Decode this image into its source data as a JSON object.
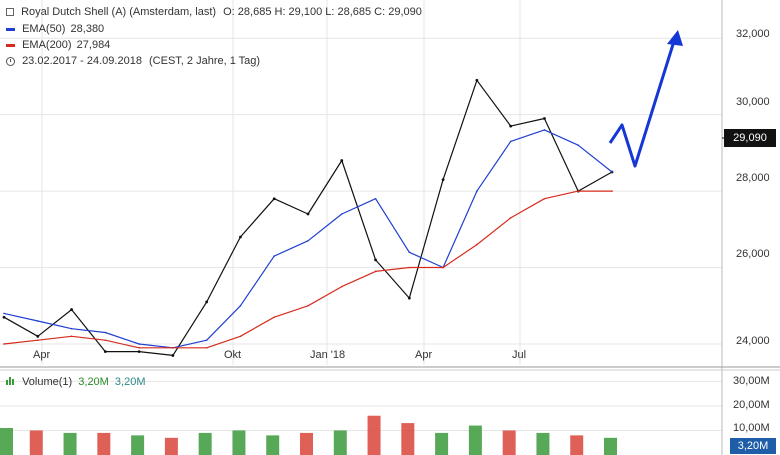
{
  "header": {
    "instrument": "Royal Dutch Shell (A) (Amsterdam, last)",
    "ohlc": "O: 28,685  H: 29,100  L: 28,685  C: 29,090",
    "ema50_label": "EMA(50)",
    "ema50_value": "28,380",
    "ema200_label": "EMA(200)",
    "ema200_value": "27,984",
    "range": "23.02.2017 - 24.09.2018",
    "range_note": "(CEST, 2 Jahre, 1 Tag)"
  },
  "volume_legend": {
    "label": "Volume(1)",
    "value1": "3,20M",
    "value2": "3,20M"
  },
  "badges": {
    "last_price": "29,090",
    "last_volume": "3,20M"
  },
  "colors": {
    "price": "#111111",
    "ema50": "#1f3fd0",
    "ema200": "#d62b1e",
    "forecast_arrow": "#1437d6",
    "volume_up": "#3a9a3a",
    "volume_down": "#d9443a",
    "grid": "#e6e6e6"
  },
  "chart_data": [
    {
      "type": "line",
      "x_ticks": [
        "Apr",
        "Okt",
        "Jan '18",
        "Apr",
        "Jul"
      ],
      "y_ticks": [
        "24,000",
        "26,000",
        "28,000",
        "30,000",
        "32,000"
      ],
      "ylim": [
        23.45,
        33.0
      ],
      "series": [
        {
          "name": "Royal Dutch Shell (A) (Amsterdam, last)",
          "x": [
            "2017-03",
            "2017-04",
            "2017-05",
            "2017-06",
            "2017-07",
            "2017-08",
            "2017-09",
            "2017-10",
            "2017-11",
            "2017-12",
            "2018-01",
            "2018-02",
            "2018-03",
            "2018-04",
            "2018-05",
            "2018-06",
            "2018-07",
            "2018-08",
            "2018-09"
          ],
          "values": [
            24.7,
            24.2,
            24.9,
            23.8,
            23.8,
            23.7,
            25.1,
            26.8,
            27.8,
            27.4,
            28.8,
            26.2,
            25.2,
            28.3,
            30.9,
            29.7,
            29.9,
            28.0,
            28.5
          ]
        },
        {
          "name": "EMA(50)",
          "x": [
            "2017-03",
            "2017-04",
            "2017-05",
            "2017-06",
            "2017-07",
            "2017-08",
            "2017-09",
            "2017-10",
            "2017-11",
            "2017-12",
            "2018-01",
            "2018-02",
            "2018-03",
            "2018-04",
            "2018-05",
            "2018-06",
            "2018-07",
            "2018-08",
            "2018-09"
          ],
          "values": [
            24.8,
            24.6,
            24.4,
            24.3,
            24.0,
            23.9,
            24.1,
            25.0,
            26.3,
            26.7,
            27.4,
            27.8,
            26.4,
            26.0,
            28.0,
            29.3,
            29.6,
            29.2,
            28.5
          ]
        },
        {
          "name": "EMA(200)",
          "x": [
            "2017-03",
            "2017-04",
            "2017-05",
            "2017-06",
            "2017-07",
            "2017-08",
            "2017-09",
            "2017-10",
            "2017-11",
            "2017-12",
            "2018-01",
            "2018-02",
            "2018-03",
            "2018-04",
            "2018-05",
            "2018-06",
            "2018-07",
            "2018-08",
            "2018-09"
          ],
          "values": [
            24.0,
            24.1,
            24.2,
            24.1,
            23.9,
            23.9,
            23.9,
            24.2,
            24.7,
            25.0,
            25.5,
            25.9,
            26.0,
            26.0,
            26.6,
            27.3,
            27.8,
            28.0,
            28.0
          ]
        }
      ]
    },
    {
      "type": "bar",
      "y_ticks": [
        "10,00M",
        "20,00M",
        "30,00M"
      ],
      "ylim": [
        0,
        33
      ],
      "x": [
        "2017-03",
        "2017-04",
        "2017-05",
        "2017-06",
        "2017-07",
        "2017-08",
        "2017-09",
        "2017-10",
        "2017-11",
        "2017-12",
        "2018-01",
        "2018-02",
        "2018-03",
        "2018-04",
        "2018-05",
        "2018-06",
        "2018-07",
        "2018-08",
        "2018-09"
      ],
      "values": [
        11,
        10,
        9,
        9,
        8,
        7,
        9,
        10,
        8,
        9,
        10,
        16,
        13,
        9,
        12,
        10,
        9,
        8,
        7
      ]
    }
  ]
}
